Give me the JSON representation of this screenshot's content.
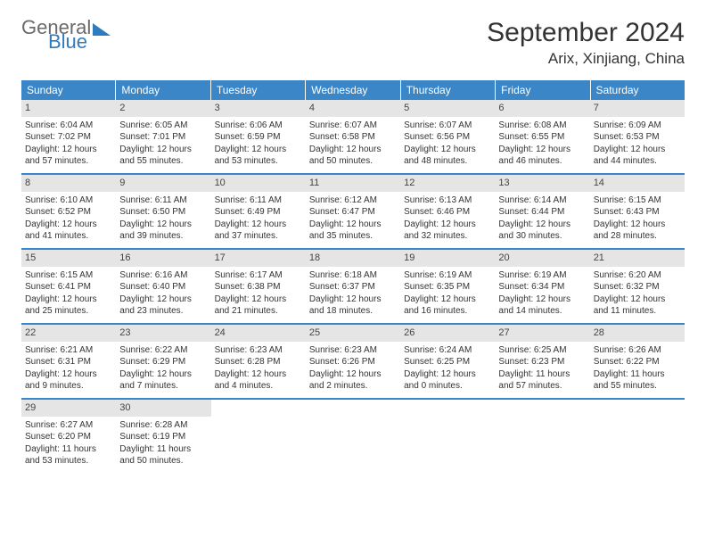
{
  "brand": {
    "word1": "General",
    "word2": "Blue",
    "color_grey": "#6a6a6a",
    "color_blue": "#2f7bbf"
  },
  "title": "September 2024",
  "location": "Arix, Xinjiang, China",
  "header_bg": "#3b86c6",
  "weekdays": [
    "Sunday",
    "Monday",
    "Tuesday",
    "Wednesday",
    "Thursday",
    "Friday",
    "Saturday"
  ],
  "weeks": [
    [
      {
        "n": "1",
        "sr": "Sunrise: 6:04 AM",
        "ss": "Sunset: 7:02 PM",
        "dl": "Daylight: 12 hours and 57 minutes."
      },
      {
        "n": "2",
        "sr": "Sunrise: 6:05 AM",
        "ss": "Sunset: 7:01 PM",
        "dl": "Daylight: 12 hours and 55 minutes."
      },
      {
        "n": "3",
        "sr": "Sunrise: 6:06 AM",
        "ss": "Sunset: 6:59 PM",
        "dl": "Daylight: 12 hours and 53 minutes."
      },
      {
        "n": "4",
        "sr": "Sunrise: 6:07 AM",
        "ss": "Sunset: 6:58 PM",
        "dl": "Daylight: 12 hours and 50 minutes."
      },
      {
        "n": "5",
        "sr": "Sunrise: 6:07 AM",
        "ss": "Sunset: 6:56 PM",
        "dl": "Daylight: 12 hours and 48 minutes."
      },
      {
        "n": "6",
        "sr": "Sunrise: 6:08 AM",
        "ss": "Sunset: 6:55 PM",
        "dl": "Daylight: 12 hours and 46 minutes."
      },
      {
        "n": "7",
        "sr": "Sunrise: 6:09 AM",
        "ss": "Sunset: 6:53 PM",
        "dl": "Daylight: 12 hours and 44 minutes."
      }
    ],
    [
      {
        "n": "8",
        "sr": "Sunrise: 6:10 AM",
        "ss": "Sunset: 6:52 PM",
        "dl": "Daylight: 12 hours and 41 minutes."
      },
      {
        "n": "9",
        "sr": "Sunrise: 6:11 AM",
        "ss": "Sunset: 6:50 PM",
        "dl": "Daylight: 12 hours and 39 minutes."
      },
      {
        "n": "10",
        "sr": "Sunrise: 6:11 AM",
        "ss": "Sunset: 6:49 PM",
        "dl": "Daylight: 12 hours and 37 minutes."
      },
      {
        "n": "11",
        "sr": "Sunrise: 6:12 AM",
        "ss": "Sunset: 6:47 PM",
        "dl": "Daylight: 12 hours and 35 minutes."
      },
      {
        "n": "12",
        "sr": "Sunrise: 6:13 AM",
        "ss": "Sunset: 6:46 PM",
        "dl": "Daylight: 12 hours and 32 minutes."
      },
      {
        "n": "13",
        "sr": "Sunrise: 6:14 AM",
        "ss": "Sunset: 6:44 PM",
        "dl": "Daylight: 12 hours and 30 minutes."
      },
      {
        "n": "14",
        "sr": "Sunrise: 6:15 AM",
        "ss": "Sunset: 6:43 PM",
        "dl": "Daylight: 12 hours and 28 minutes."
      }
    ],
    [
      {
        "n": "15",
        "sr": "Sunrise: 6:15 AM",
        "ss": "Sunset: 6:41 PM",
        "dl": "Daylight: 12 hours and 25 minutes."
      },
      {
        "n": "16",
        "sr": "Sunrise: 6:16 AM",
        "ss": "Sunset: 6:40 PM",
        "dl": "Daylight: 12 hours and 23 minutes."
      },
      {
        "n": "17",
        "sr": "Sunrise: 6:17 AM",
        "ss": "Sunset: 6:38 PM",
        "dl": "Daylight: 12 hours and 21 minutes."
      },
      {
        "n": "18",
        "sr": "Sunrise: 6:18 AM",
        "ss": "Sunset: 6:37 PM",
        "dl": "Daylight: 12 hours and 18 minutes."
      },
      {
        "n": "19",
        "sr": "Sunrise: 6:19 AM",
        "ss": "Sunset: 6:35 PM",
        "dl": "Daylight: 12 hours and 16 minutes."
      },
      {
        "n": "20",
        "sr": "Sunrise: 6:19 AM",
        "ss": "Sunset: 6:34 PM",
        "dl": "Daylight: 12 hours and 14 minutes."
      },
      {
        "n": "21",
        "sr": "Sunrise: 6:20 AM",
        "ss": "Sunset: 6:32 PM",
        "dl": "Daylight: 12 hours and 11 minutes."
      }
    ],
    [
      {
        "n": "22",
        "sr": "Sunrise: 6:21 AM",
        "ss": "Sunset: 6:31 PM",
        "dl": "Daylight: 12 hours and 9 minutes."
      },
      {
        "n": "23",
        "sr": "Sunrise: 6:22 AM",
        "ss": "Sunset: 6:29 PM",
        "dl": "Daylight: 12 hours and 7 minutes."
      },
      {
        "n": "24",
        "sr": "Sunrise: 6:23 AM",
        "ss": "Sunset: 6:28 PM",
        "dl": "Daylight: 12 hours and 4 minutes."
      },
      {
        "n": "25",
        "sr": "Sunrise: 6:23 AM",
        "ss": "Sunset: 6:26 PM",
        "dl": "Daylight: 12 hours and 2 minutes."
      },
      {
        "n": "26",
        "sr": "Sunrise: 6:24 AM",
        "ss": "Sunset: 6:25 PM",
        "dl": "Daylight: 12 hours and 0 minutes."
      },
      {
        "n": "27",
        "sr": "Sunrise: 6:25 AM",
        "ss": "Sunset: 6:23 PM",
        "dl": "Daylight: 11 hours and 57 minutes."
      },
      {
        "n": "28",
        "sr": "Sunrise: 6:26 AM",
        "ss": "Sunset: 6:22 PM",
        "dl": "Daylight: 11 hours and 55 minutes."
      }
    ],
    [
      {
        "n": "29",
        "sr": "Sunrise: 6:27 AM",
        "ss": "Sunset: 6:20 PM",
        "dl": "Daylight: 11 hours and 53 minutes."
      },
      {
        "n": "30",
        "sr": "Sunrise: 6:28 AM",
        "ss": "Sunset: 6:19 PM",
        "dl": "Daylight: 11 hours and 50 minutes."
      },
      {
        "empty": true
      },
      {
        "empty": true
      },
      {
        "empty": true
      },
      {
        "empty": true
      },
      {
        "empty": true
      }
    ]
  ]
}
